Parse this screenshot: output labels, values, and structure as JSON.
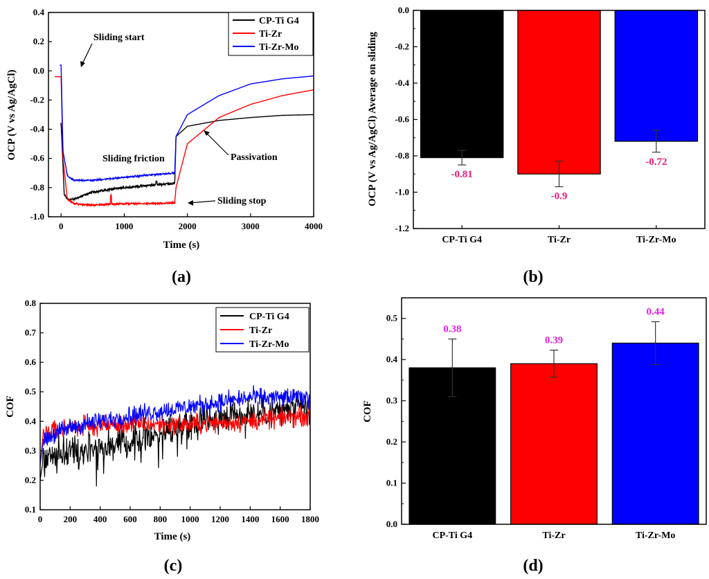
{
  "colors": {
    "black": "#000000",
    "red": "#ff0000",
    "blue": "#0000ff",
    "label_pink": "#e6197a",
    "label_magenta": "#e61ee6"
  },
  "chart_data": [
    {
      "id": "a",
      "type": "line",
      "panel_label": "(a)",
      "xlabel": "Time (s)",
      "ylabel": "OCP (V vs Ag/AgCl)",
      "xlim": [
        -200,
        4000
      ],
      "ylim": [
        -1.0,
        0.4
      ],
      "xticks": [
        0,
        1000,
        2000,
        3000,
        4000
      ],
      "yticks": [
        0.4,
        0.2,
        0.0,
        -0.2,
        -0.4,
        -0.6,
        -0.8,
        -1.0
      ],
      "ytick_labels": [
        "0.4",
        "0.2",
        "0.0",
        "-0.2",
        "-0.4",
        "-0.6",
        "-0.8",
        "-1.0"
      ],
      "legend_position": "top-right",
      "series": [
        {
          "name": "CP-Ti G4",
          "color": "black",
          "key_points": [
            [
              -10,
              -0.36
            ],
            [
              0,
              -0.36
            ],
            [
              50,
              -0.85
            ],
            [
              100,
              -0.88
            ],
            [
              200,
              -0.88
            ],
            [
              500,
              -0.83
            ],
            [
              1000,
              -0.8
            ],
            [
              1500,
              -0.78
            ],
            [
              1800,
              -0.77
            ],
            [
              1820,
              -0.45
            ],
            [
              2000,
              -0.38
            ],
            [
              2500,
              -0.34
            ],
            [
              3000,
              -0.32
            ],
            [
              3500,
              -0.305
            ],
            [
              4000,
              -0.3
            ]
          ]
        },
        {
          "name": "Ti-Zr",
          "color": "red",
          "key_points": [
            [
              -100,
              -0.04
            ],
            [
              -10,
              -0.04
            ],
            [
              0,
              -0.04
            ],
            [
              30,
              -0.6
            ],
            [
              100,
              -0.88
            ],
            [
              200,
              -0.91
            ],
            [
              500,
              -0.92
            ],
            [
              1000,
              -0.91
            ],
            [
              1500,
              -0.91
            ],
            [
              1800,
              -0.905
            ],
            [
              1820,
              -0.8
            ],
            [
              2000,
              -0.5
            ],
            [
              2500,
              -0.32
            ],
            [
              3000,
              -0.23
            ],
            [
              3500,
              -0.17
            ],
            [
              4000,
              -0.13
            ]
          ]
        },
        {
          "name": "Ti-Zr-Mo",
          "color": "blue",
          "key_points": [
            [
              -20,
              0.04
            ],
            [
              0,
              0.04
            ],
            [
              30,
              -0.55
            ],
            [
              100,
              -0.72
            ],
            [
              200,
              -0.75
            ],
            [
              500,
              -0.75
            ],
            [
              1000,
              -0.73
            ],
            [
              1500,
              -0.71
            ],
            [
              1800,
              -0.7
            ],
            [
              1820,
              -0.45
            ],
            [
              2000,
              -0.3
            ],
            [
              2500,
              -0.17
            ],
            [
              3000,
              -0.09
            ],
            [
              3500,
              -0.055
            ],
            [
              4000,
              -0.035
            ]
          ]
        }
      ],
      "annotations": [
        {
          "text": "Sliding start",
          "x": 10,
          "y": 0.21
        },
        {
          "text": "Sliding friction",
          "x": 330,
          "y": -0.56
        },
        {
          "text": "Passivation",
          "x": 2680,
          "y": -0.55
        },
        {
          "text": "Sliding stop",
          "x": 2260,
          "y": -0.9
        }
      ]
    },
    {
      "id": "b",
      "type": "bar",
      "panel_label": "(b)",
      "xlabel": "",
      "ylabel": "OCP (V vs Ag/AgCl) Average on sliding",
      "ylim": [
        -1.2,
        0.0
      ],
      "yticks": [
        0.0,
        -0.2,
        -0.4,
        -0.6,
        -0.8,
        -1.0,
        -1.2
      ],
      "ytick_labels": [
        "0.0",
        "-0.2",
        "-0.4",
        "-0.6",
        "-0.8",
        "-1.0",
        "-1.2"
      ],
      "categories": [
        "CP-Ti G4",
        "Ti-Zr",
        "Ti-Zr-Mo"
      ],
      "values": [
        -0.81,
        -0.9,
        -0.72
      ],
      "errors": [
        0.04,
        0.07,
        0.06
      ],
      "value_labels": [
        "-0.81",
        "-0.9",
        "-0.72"
      ],
      "bar_colors": [
        "black",
        "red",
        "blue"
      ],
      "label_color": "label_pink"
    },
    {
      "id": "c",
      "type": "line",
      "panel_label": "(c)",
      "xlabel": "Time (s)",
      "ylabel": "COF",
      "xlim": [
        0,
        1800
      ],
      "ylim": [
        0.1,
        0.8
      ],
      "xticks": [
        0,
        200,
        400,
        600,
        800,
        1000,
        1200,
        1400,
        1600,
        1800
      ],
      "yticks": [
        0.8,
        0.7,
        0.6,
        0.5,
        0.4,
        0.3,
        0.2,
        0.1
      ],
      "ytick_labels": [
        "0.8",
        "0.7",
        "0.6",
        "0.5",
        "0.4",
        "0.3",
        "0.2",
        "0.1"
      ],
      "legend_position": "top-right",
      "series": [
        {
          "name": "CP-Ti G4",
          "color": "black",
          "trend": [
            [
              0,
              0.2
            ],
            [
              20,
              0.27
            ],
            [
              200,
              0.3
            ],
            [
              600,
              0.33
            ],
            [
              900,
              0.38
            ],
            [
              1200,
              0.42
            ],
            [
              1500,
              0.43
            ],
            [
              1800,
              0.45
            ]
          ],
          "noise": 0.05
        },
        {
          "name": "Ti-Zr",
          "color": "red",
          "trend": [
            [
              0,
              0.25
            ],
            [
              20,
              0.36
            ],
            [
              200,
              0.38
            ],
            [
              600,
              0.39
            ],
            [
              1000,
              0.39
            ],
            [
              1400,
              0.4
            ],
            [
              1800,
              0.42
            ]
          ],
          "noise": 0.03
        },
        {
          "name": "Ti-Zr-Mo",
          "color": "blue",
          "trend": [
            [
              0,
              0.25
            ],
            [
              20,
              0.34
            ],
            [
              200,
              0.38
            ],
            [
              600,
              0.42
            ],
            [
              1000,
              0.45
            ],
            [
              1400,
              0.48
            ],
            [
              1800,
              0.48
            ]
          ],
          "noise": 0.03
        }
      ]
    },
    {
      "id": "d",
      "type": "bar",
      "panel_label": "(d)",
      "xlabel": "",
      "ylabel": "COF",
      "ylim": [
        0.0,
        0.55
      ],
      "yticks": [
        0.0,
        0.1,
        0.2,
        0.3,
        0.4,
        0.5
      ],
      "ytick_labels": [
        "0.0",
        "0.1",
        "0.2",
        "0.3",
        "0.4",
        "0.5"
      ],
      "categories": [
        "CP-Ti G4",
        "Ti-Zr",
        "Ti-Zr-Mo"
      ],
      "values": [
        0.38,
        0.39,
        0.44
      ],
      "errors": [
        0.07,
        0.033,
        0.052
      ],
      "value_labels": [
        "0.38",
        "0.39",
        "0.44"
      ],
      "bar_colors": [
        "black",
        "red",
        "blue"
      ],
      "label_color": "label_magenta"
    }
  ]
}
